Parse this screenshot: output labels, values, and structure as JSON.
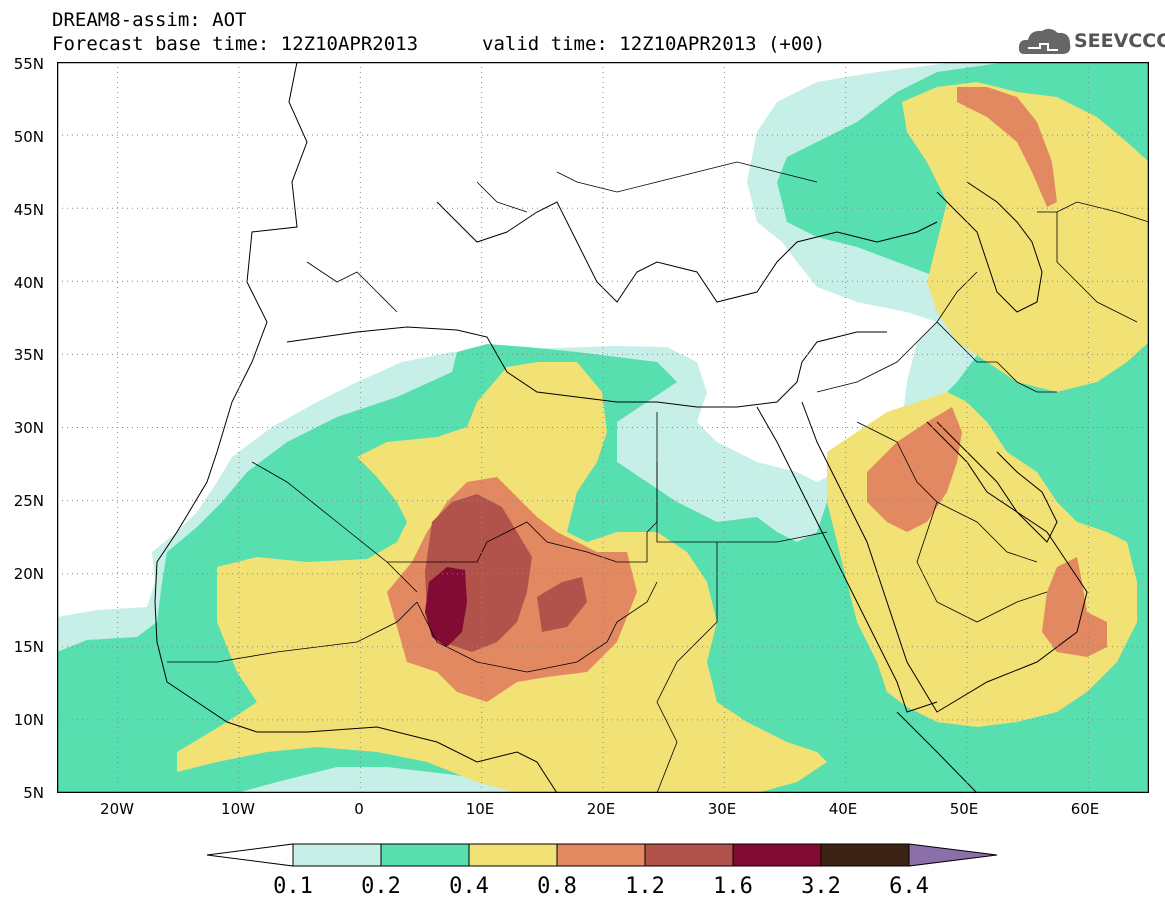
{
  "header": {
    "line1": "DREAM8-assim: AOT",
    "line2": "Forecast base time: 12Z10APR2013",
    "line3": "valid time: 12Z10APR2013 (+00)"
  },
  "logo": {
    "text": "SEEVCCC",
    "icon": "cloud-logo-icon"
  },
  "map": {
    "lat_ticks": [
      "55N",
      "50N",
      "45N",
      "40N",
      "35N",
      "30N",
      "25N",
      "20N",
      "15N",
      "10N",
      "5N"
    ],
    "lon_ticks": [
      "20W",
      "10W",
      "0",
      "10E",
      "20E",
      "30E",
      "40E",
      "50E",
      "60E"
    ],
    "lon_range": [
      -25,
      65
    ],
    "lat_range": [
      5,
      55
    ],
    "grid": "dotted"
  },
  "colorbar": {
    "labels": [
      "0.1",
      "0.2",
      "0.4",
      "0.8",
      "1.2",
      "1.6",
      "3.2",
      "6.4"
    ],
    "colors": [
      "#ffffff",
      "#c6efe8",
      "#57dfb0",
      "#f2e175",
      "#e38962",
      "#b1524b",
      "#820b34",
      "#3b2314",
      "#8a6fa8"
    ]
  },
  "colors": {
    "aot_0_1": "#c6efe8",
    "aot_0_2": "#57dfb0",
    "aot_0_4": "#f2e175",
    "aot_0_8": "#e38962",
    "aot_1_2": "#b1524b",
    "aot_1_6": "#820b34"
  }
}
